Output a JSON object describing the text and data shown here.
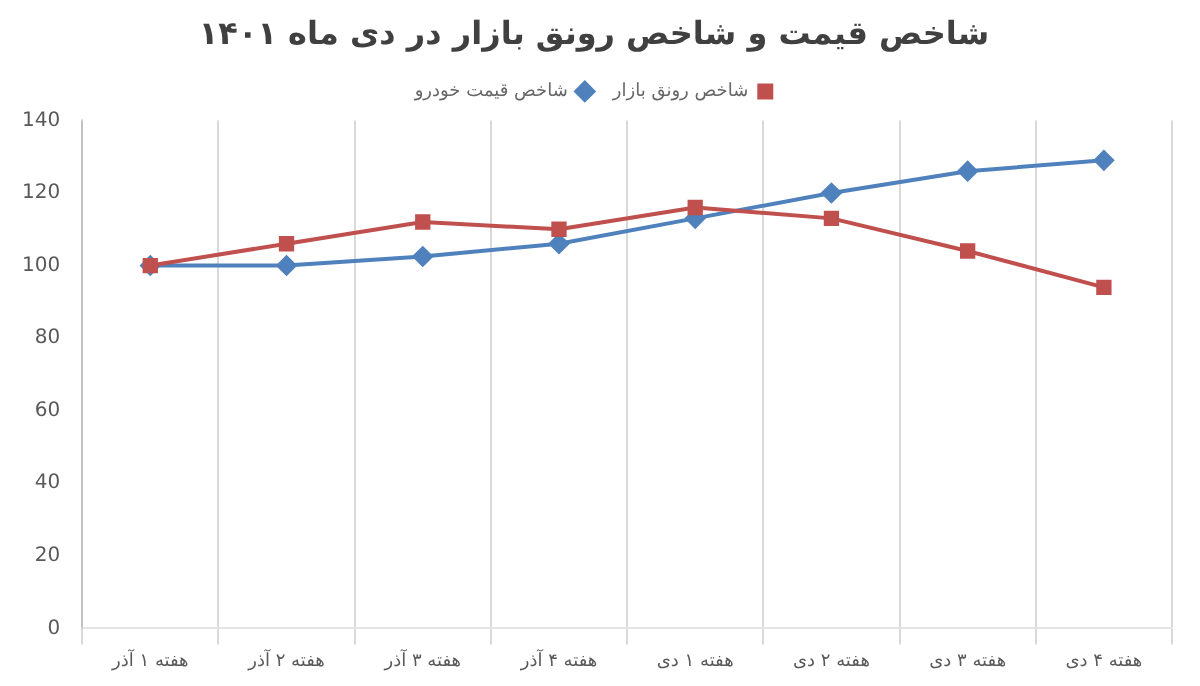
{
  "chart_data": {
    "type": "line",
    "title": "شاخص قیمت و شاخص رونق بازار در دی ماه ۱۴۰۱",
    "categories": [
      "هفته ۱ آذر",
      "هفته ۲ آذر",
      "هفته ۳ آذر",
      "هفته ۴ آذر",
      "هفته ۱ دی",
      "هفته ۲ دی",
      "هفته ۳ دی",
      "هفته ۴ دی"
    ],
    "series": [
      {
        "name": "شاخص قیمت خودرو",
        "color": "#4f81bd",
        "marker": "diamond",
        "values": [
          100,
          100,
          102.5,
          106,
          113,
          120,
          126,
          129
        ]
      },
      {
        "name": "شاخص رونق بازار",
        "color": "#c0504d",
        "marker": "square",
        "values": [
          100,
          106,
          112,
          110,
          116,
          113,
          104,
          94
        ]
      }
    ],
    "ylim": [
      0,
      140
    ],
    "yticks": [
      0,
      20,
      40,
      60,
      80,
      100,
      120,
      140
    ],
    "grid": "x",
    "legend": "top"
  }
}
